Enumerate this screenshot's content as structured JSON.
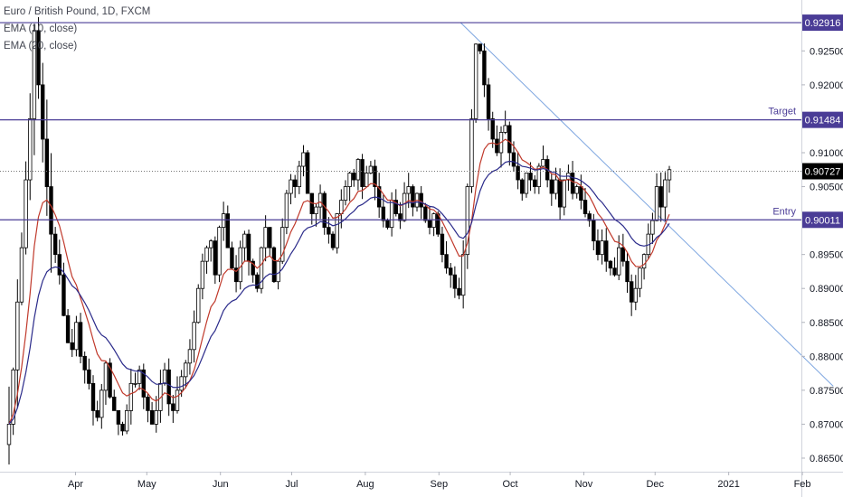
{
  "header": {
    "symbol": "Euro / British Pound, 1D, FXCM",
    "ema1": "EMA (10, close)",
    "ema2": "EMA (20, close)"
  },
  "colors": {
    "bull": "#ffffff",
    "bear": "#000000",
    "ema_fast": "#c0392b",
    "ema_slow": "#2a2a8a",
    "level": "#4a3c96",
    "trendline": "#7ea6e0",
    "current": "#000000"
  },
  "chart_data": {
    "type": "candlestick",
    "title": "Euro / British Pound, 1D, FXCM",
    "x_ticks": [
      "Apr",
      "May",
      "Jun",
      "Jul",
      "Aug",
      "Sep",
      "Oct",
      "Nov",
      "Dec",
      "2021",
      "Feb"
    ],
    "y_ticks": [
      "0.92500",
      "0.92000",
      "0.91000",
      "0.90500",
      "0.89500",
      "0.89000",
      "0.88500",
      "0.88000",
      "0.87500",
      "0.87000",
      "0.86500"
    ],
    "ylim": [
      0.863,
      0.9325
    ],
    "levels": [
      {
        "value": 0.92916,
        "label": "0.92916",
        "name": ""
      },
      {
        "value": 0.91484,
        "label": "0.91484",
        "name": "Target"
      },
      {
        "value": 0.90011,
        "label": "0.90011",
        "name": "Entry"
      }
    ],
    "current_price": {
      "value": 0.90727,
      "label": "0.90727"
    },
    "trendline": {
      "from": {
        "date": "2020-09-10",
        "price": 0.9292
      },
      "to": {
        "date": "2021-02-14",
        "price": 0.8756
      }
    },
    "candles_description": "EUR/GBP daily, March–December 2020",
    "closes": [
      0.87,
      0.878,
      0.888,
      0.896,
      0.906,
      0.915,
      0.928,
      0.92,
      0.912,
      0.905,
      0.898,
      0.895,
      0.892,
      0.886,
      0.882,
      0.881,
      0.885,
      0.88,
      0.878,
      0.876,
      0.872,
      0.871,
      0.875,
      0.879,
      0.874,
      0.872,
      0.87,
      0.869,
      0.872,
      0.876,
      0.876,
      0.878,
      0.874,
      0.872,
      0.87,
      0.872,
      0.876,
      0.878,
      0.873,
      0.872,
      0.875,
      0.877,
      0.879,
      0.881,
      0.885,
      0.89,
      0.894,
      0.896,
      0.897,
      0.892,
      0.899,
      0.901,
      0.896,
      0.893,
      0.891,
      0.896,
      0.898,
      0.894,
      0.892,
      0.89,
      0.896,
      0.899,
      0.896,
      0.891,
      0.894,
      0.899,
      0.904,
      0.906,
      0.905,
      0.908,
      0.91,
      0.904,
      0.901,
      0.902,
      0.904,
      0.899,
      0.898,
      0.896,
      0.901,
      0.903,
      0.905,
      0.907,
      0.906,
      0.909,
      0.905,
      0.907,
      0.908,
      0.905,
      0.902,
      0.9,
      0.899,
      0.903,
      0.901,
      0.9,
      0.904,
      0.905,
      0.902,
      0.904,
      0.902,
      0.9,
      0.899,
      0.901,
      0.898,
      0.895,
      0.893,
      0.892,
      0.89,
      0.889,
      0.895,
      0.905,
      0.915,
      0.926,
      0.925,
      0.92,
      0.915,
      0.912,
      0.91,
      0.913,
      0.914,
      0.91,
      0.908,
      0.906,
      0.904,
      0.907,
      0.906,
      0.905,
      0.908,
      0.909,
      0.906,
      0.904,
      0.906,
      0.902,
      0.906,
      0.907,
      0.904,
      0.905,
      0.903,
      0.901,
      0.9,
      0.897,
      0.895,
      0.897,
      0.894,
      0.893,
      0.892,
      0.896,
      0.894,
      0.891,
      0.888,
      0.89,
      0.893,
      0.895,
      0.898,
      0.9,
      0.905,
      0.902,
      0.906,
      0.9075
    ]
  }
}
